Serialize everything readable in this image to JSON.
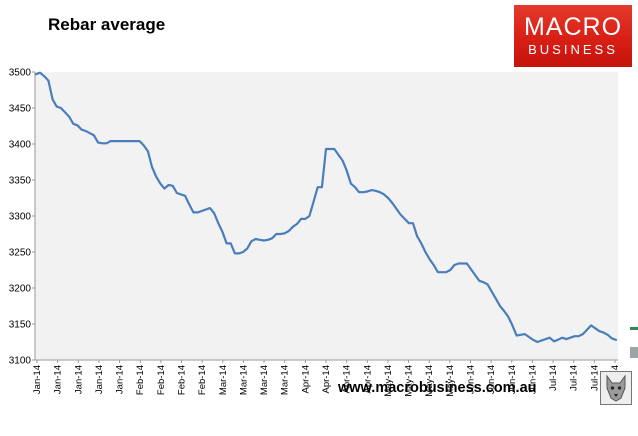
{
  "chart_data": {
    "type": "line",
    "title": "Rebar average",
    "ylim": [
      3100,
      3500
    ],
    "yticks": [
      3100,
      3150,
      3200,
      3250,
      3300,
      3350,
      3400,
      3450,
      3500
    ],
    "grid": "none",
    "line_color": "#4a7ebb",
    "plot_background": "#f2f2f2",
    "x_tick_labels": [
      "Jan-14",
      "Jan-14",
      "Jan-14",
      "Jan-14",
      "Jan-14",
      "Feb-14",
      "Feb-14",
      "Feb-14",
      "Feb-14",
      "Mar-14",
      "Mar-14",
      "Mar-14",
      "Mar-14",
      "Apr-14",
      "Apr-14",
      "Apr-14",
      "Apr-14",
      "May-14",
      "May-14",
      "May-14",
      "May-14",
      "Jun-14",
      "Jun-14",
      "Jun-14",
      "Jun-14",
      "Jul-14",
      "Jul-14",
      "Jul-14",
      "Jul-14"
    ],
    "series": [
      {
        "values": [
          3497,
          3499,
          3494,
          3488,
          3462,
          3452,
          3450,
          3444,
          3438,
          3428,
          3426,
          3420,
          3418,
          3415,
          3412,
          3402,
          3401,
          3401,
          3404,
          3404,
          3404,
          3404,
          3404,
          3404,
          3404,
          3404,
          3398,
          3390,
          3368,
          3355,
          3345,
          3338,
          3343,
          3342,
          3332,
          3330,
          3328,
          3316,
          3305,
          3305,
          3307,
          3309,
          3311,
          3304,
          3290,
          3278,
          3262,
          3262,
          3248,
          3248,
          3250,
          3255,
          3265,
          3268,
          3267,
          3266,
          3267,
          3269,
          3275,
          3275,
          3276,
          3279,
          3285,
          3289,
          3296,
          3296,
          3300,
          3320,
          3340,
          3340,
          3393,
          3393,
          3393,
          3385,
          3377,
          3363,
          3345,
          3340,
          3333,
          3333,
          3334,
          3336,
          3335,
          3333,
          3330,
          3325,
          3318,
          3310,
          3302,
          3296,
          3290,
          3290,
          3272,
          3262,
          3250,
          3240,
          3232,
          3222,
          3222,
          3222,
          3225,
          3232,
          3234,
          3234,
          3234,
          3226,
          3218,
          3210,
          3208,
          3205,
          3195,
          3185,
          3175,
          3168,
          3160,
          3148,
          3134,
          3135,
          3136,
          3132,
          3128,
          3125,
          3127,
          3129,
          3131,
          3126,
          3128,
          3131,
          3129,
          3131,
          3133,
          3133,
          3136,
          3142,
          3148,
          3144,
          3140,
          3138,
          3135,
          3130,
          3128
        ]
      }
    ]
  },
  "logo": {
    "line1": "MACRO",
    "line2": "BUSINESS"
  },
  "footer": {
    "url": "www.macrobusiness.com.au"
  }
}
